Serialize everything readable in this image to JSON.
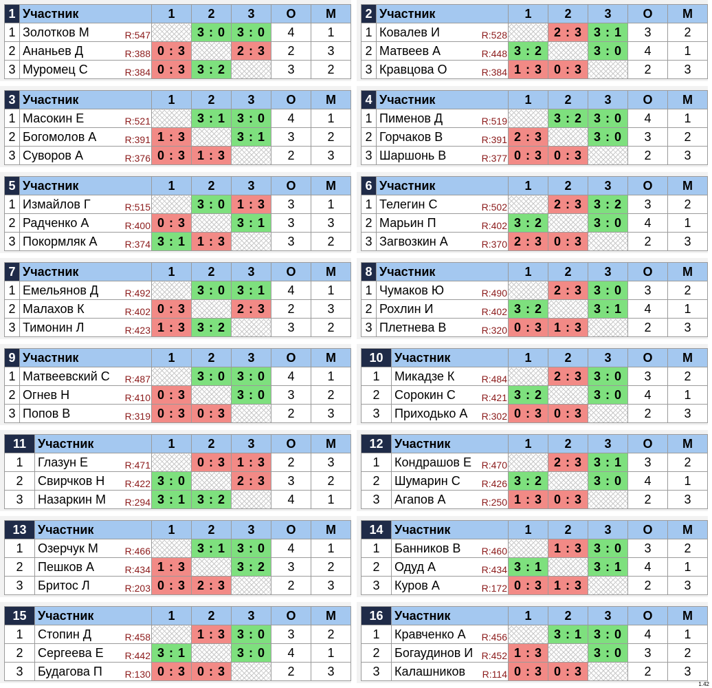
{
  "headers": {
    "participant": "Участник",
    "c1": "1",
    "c2": "2",
    "c3": "3",
    "points": "О",
    "place": "М"
  },
  "version": "1.42",
  "groups": [
    {
      "num": "1",
      "rows": [
        {
          "pos": "1",
          "name": "Золотков М",
          "rating": "R:547",
          "r1": "",
          "r2": "3 : 0",
          "r3": "3 : 0",
          "o": "4",
          "m": "1"
        },
        {
          "pos": "2",
          "name": "Ананьев Д",
          "rating": "R:388",
          "r1": "0 : 3",
          "r2": "",
          "r3": "2 : 3",
          "o": "2",
          "m": "3"
        },
        {
          "pos": "3",
          "name": "Муромец С",
          "rating": "R:384",
          "r1": "0 : 3",
          "r2": "3 : 2",
          "r3": "",
          "o": "3",
          "m": "2"
        }
      ]
    },
    {
      "num": "2",
      "rows": [
        {
          "pos": "1",
          "name": "Ковалев И",
          "rating": "R:528",
          "r1": "",
          "r2": "2 : 3",
          "r3": "3 : 1",
          "o": "3",
          "m": "2"
        },
        {
          "pos": "2",
          "name": "Матвеев А",
          "rating": "R:448",
          "r1": "3 : 2",
          "r2": "",
          "r3": "3 : 0",
          "o": "4",
          "m": "1"
        },
        {
          "pos": "3",
          "name": "Кравцова О",
          "rating": "R:384",
          "r1": "1 : 3",
          "r2": "0 : 3",
          "r3": "",
          "o": "2",
          "m": "3"
        }
      ]
    },
    {
      "num": "3",
      "rows": [
        {
          "pos": "1",
          "name": "Масокин Е",
          "rating": "R:521",
          "r1": "",
          "r2": "3 : 1",
          "r3": "3 : 0",
          "o": "4",
          "m": "1"
        },
        {
          "pos": "2",
          "name": "Богомолов А",
          "rating": "R:391",
          "r1": "1 : 3",
          "r2": "",
          "r3": "3 : 1",
          "o": "3",
          "m": "2"
        },
        {
          "pos": "3",
          "name": "Суворов А",
          "rating": "R:376",
          "r1": "0 : 3",
          "r2": "1 : 3",
          "r3": "",
          "o": "2",
          "m": "3"
        }
      ]
    },
    {
      "num": "4",
      "rows": [
        {
          "pos": "1",
          "name": "Пименов Д",
          "rating": "R:519",
          "r1": "",
          "r2": "3 : 2",
          "r3": "3 : 0",
          "o": "4",
          "m": "1"
        },
        {
          "pos": "2",
          "name": "Горчаков В",
          "rating": "R:391",
          "r1": "2 : 3",
          "r2": "",
          "r3": "3 : 0",
          "o": "3",
          "m": "2"
        },
        {
          "pos": "3",
          "name": "Шаршонь В",
          "rating": "R:377",
          "r1": "0 : 3",
          "r2": "0 : 3",
          "r3": "",
          "o": "2",
          "m": "3"
        }
      ]
    },
    {
      "num": "5",
      "rows": [
        {
          "pos": "1",
          "name": "Измайлов Г",
          "rating": "R:515",
          "r1": "",
          "r2": "3 : 0",
          "r3": "1 : 3",
          "o": "3",
          "m": "1"
        },
        {
          "pos": "2",
          "name": "Радченко А",
          "rating": "R:400",
          "r1": "0 : 3",
          "r2": "",
          "r3": "3 : 1",
          "o": "3",
          "m": "3"
        },
        {
          "pos": "3",
          "name": "Покормляк А",
          "rating": "R:374",
          "r1": "3 : 1",
          "r2": "1 : 3",
          "r3": "",
          "o": "3",
          "m": "2"
        }
      ]
    },
    {
      "num": "6",
      "rows": [
        {
          "pos": "1",
          "name": "Телегин С",
          "rating": "R:502",
          "r1": "",
          "r2": "2 : 3",
          "r3": "3 : 2",
          "o": "3",
          "m": "2"
        },
        {
          "pos": "2",
          "name": "Марьин П",
          "rating": "R:402",
          "r1": "3 : 2",
          "r2": "",
          "r3": "3 : 0",
          "o": "4",
          "m": "1"
        },
        {
          "pos": "3",
          "name": "Загвозкин А",
          "rating": "R:370",
          "r1": "2 : 3",
          "r2": "0 : 3",
          "r3": "",
          "o": "2",
          "m": "3"
        }
      ]
    },
    {
      "num": "7",
      "rows": [
        {
          "pos": "1",
          "name": "Емельянов Д",
          "rating": "R:492",
          "r1": "",
          "r2": "3 : 0",
          "r3": "3 : 1",
          "o": "4",
          "m": "1"
        },
        {
          "pos": "2",
          "name": "Малахов К",
          "rating": "R:402",
          "r1": "0 : 3",
          "r2": "",
          "r3": "2 : 3",
          "o": "2",
          "m": "3"
        },
        {
          "pos": "3",
          "name": "Тимонин Л",
          "rating": "R:423",
          "r1": "1 : 3",
          "r2": "3 : 2",
          "r3": "",
          "o": "3",
          "m": "2"
        }
      ]
    },
    {
      "num": "8",
      "rows": [
        {
          "pos": "1",
          "name": "Чумаков Ю",
          "rating": "R:490",
          "r1": "",
          "r2": "2 : 3",
          "r3": "3 : 0",
          "o": "3",
          "m": "2"
        },
        {
          "pos": "2",
          "name": "Рохлин И",
          "rating": "R:402",
          "r1": "3 : 2",
          "r2": "",
          "r3": "3 : 1",
          "o": "4",
          "m": "1"
        },
        {
          "pos": "3",
          "name": "Плетнева В",
          "rating": "R:320",
          "r1": "0 : 3",
          "r2": "1 : 3",
          "r3": "",
          "o": "2",
          "m": "3"
        }
      ]
    },
    {
      "num": "9",
      "rows": [
        {
          "pos": "1",
          "name": "Матвеевский С",
          "rating": "R:487",
          "r1": "",
          "r2": "3 : 0",
          "r3": "3 : 0",
          "o": "4",
          "m": "1"
        },
        {
          "pos": "2",
          "name": "Огнев Н",
          "rating": "R:410",
          "r1": "0 : 3",
          "r2": "",
          "r3": "3 : 0",
          "o": "3",
          "m": "2"
        },
        {
          "pos": "3",
          "name": "Попов В",
          "rating": "R:319",
          "r1": "0 : 3",
          "r2": "0 : 3",
          "r3": "",
          "o": "2",
          "m": "3"
        }
      ]
    },
    {
      "num": "10",
      "rows": [
        {
          "pos": "1",
          "name": "Микадзе К",
          "rating": "R:484",
          "r1": "",
          "r2": "2 : 3",
          "r3": "3 : 0",
          "o": "3",
          "m": "2"
        },
        {
          "pos": "2",
          "name": "Сорокин С",
          "rating": "R:421",
          "r1": "3 : 2",
          "r2": "",
          "r3": "3 : 0",
          "o": "4",
          "m": "1"
        },
        {
          "pos": "3",
          "name": "Приходько А",
          "rating": "R:302",
          "r1": "0 : 3",
          "r2": "0 : 3",
          "r3": "",
          "o": "2",
          "m": "3"
        }
      ]
    },
    {
      "num": "11",
      "rows": [
        {
          "pos": "1",
          "name": "Глазун Е",
          "rating": "R:471",
          "r1": "",
          "r2": "0 : 3",
          "r3": "1 : 3",
          "o": "2",
          "m": "3"
        },
        {
          "pos": "2",
          "name": "Свирчков Н",
          "rating": "R:422",
          "r1": "3 : 0",
          "r2": "",
          "r3": "2 : 3",
          "o": "3",
          "m": "2"
        },
        {
          "pos": "3",
          "name": "Назаркин М",
          "rating": "R:294",
          "r1": "3 : 1",
          "r2": "3 : 2",
          "r3": "",
          "o": "4",
          "m": "1"
        }
      ]
    },
    {
      "num": "12",
      "rows": [
        {
          "pos": "1",
          "name": "Кондрашов Е",
          "rating": "R:470",
          "r1": "",
          "r2": "2 : 3",
          "r3": "3 : 1",
          "o": "3",
          "m": "2"
        },
        {
          "pos": "2",
          "name": "Шумарин С",
          "rating": "R:426",
          "r1": "3 : 2",
          "r2": "",
          "r3": "3 : 0",
          "o": "4",
          "m": "1"
        },
        {
          "pos": "3",
          "name": "Агапов А",
          "rating": "R:250",
          "r1": "1 : 3",
          "r2": "0 : 3",
          "r3": "",
          "o": "2",
          "m": "3"
        }
      ]
    },
    {
      "num": "13",
      "rows": [
        {
          "pos": "1",
          "name": "Озерчук М",
          "rating": "R:466",
          "r1": "",
          "r2": "3 : 1",
          "r3": "3 : 0",
          "o": "4",
          "m": "1"
        },
        {
          "pos": "2",
          "name": "Пешков А",
          "rating": "R:434",
          "r1": "1 : 3",
          "r2": "",
          "r3": "3 : 2",
          "o": "3",
          "m": "2"
        },
        {
          "pos": "3",
          "name": "Бритос Л",
          "rating": "R:203",
          "r1": "0 : 3",
          "r2": "2 : 3",
          "r3": "",
          "o": "2",
          "m": "3"
        }
      ]
    },
    {
      "num": "14",
      "rows": [
        {
          "pos": "1",
          "name": "Банников В",
          "rating": "R:460",
          "r1": "",
          "r2": "1 : 3",
          "r3": "3 : 0",
          "o": "3",
          "m": "2"
        },
        {
          "pos": "2",
          "name": "Одуд А",
          "rating": "R:434",
          "r1": "3 : 1",
          "r2": "",
          "r3": "3 : 1",
          "o": "4",
          "m": "1"
        },
        {
          "pos": "3",
          "name": "Куров А",
          "rating": "R:172",
          "r1": "0 : 3",
          "r2": "1 : 3",
          "r3": "",
          "o": "2",
          "m": "3"
        }
      ]
    },
    {
      "num": "15",
      "rows": [
        {
          "pos": "1",
          "name": "Стопин Д",
          "rating": "R:458",
          "r1": "",
          "r2": "1 : 3",
          "r3": "3 : 0",
          "o": "3",
          "m": "2"
        },
        {
          "pos": "2",
          "name": "Сергеева Е",
          "rating": "R:442",
          "r1": "3 : 1",
          "r2": "",
          "r3": "3 : 0",
          "o": "4",
          "m": "1"
        },
        {
          "pos": "3",
          "name": "Будагова П",
          "rating": "R:130",
          "r1": "0 : 3",
          "r2": "0 : 3",
          "r3": "",
          "o": "2",
          "m": "3"
        }
      ]
    },
    {
      "num": "16",
      "rows": [
        {
          "pos": "1",
          "name": "Кравченко А",
          "rating": "R:456",
          "r1": "",
          "r2": "3 : 1",
          "r3": "3 : 0",
          "o": "4",
          "m": "1"
        },
        {
          "pos": "2",
          "name": "Богаудинов И",
          "rating": "R:452",
          "r1": "1 : 3",
          "r2": "",
          "r3": "3 : 0",
          "o": "3",
          "m": "2"
        },
        {
          "pos": "3",
          "name": "Калашников",
          "rating": "R:114",
          "r1": "0 : 3",
          "r2": "0 : 3",
          "r3": "",
          "o": "2",
          "m": "3"
        }
      ]
    }
  ]
}
